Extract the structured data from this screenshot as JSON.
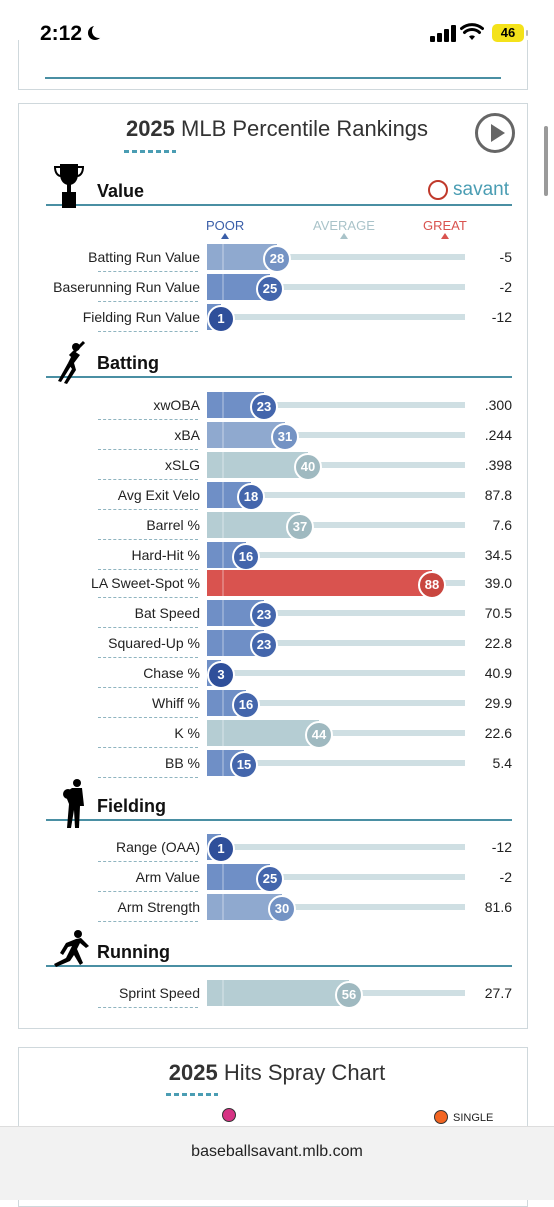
{
  "status_bar": {
    "time": "2:12",
    "battery": "46"
  },
  "percentile_card": {
    "title_year": "2025",
    "title_rest": "MLB Percentile Rankings",
    "logo_text": "savant",
    "scale": {
      "poor": "POOR",
      "average": "AVERAGE",
      "great": "GREAT"
    },
    "colors": {
      "poor": "#3a5ea8",
      "average": "#b5cdd3",
      "great": "#d9534f",
      "accent": "#4a8fa3"
    },
    "sections": [
      {
        "name": "Value",
        "icon": "trophy-icon",
        "rows": [
          {
            "label": "Batting Run Value",
            "percentile": 28,
            "value": "-5"
          },
          {
            "label": "Baserunning Run Value",
            "percentile": 25,
            "value": "-2"
          },
          {
            "label": "Fielding Run Value",
            "percentile": 1,
            "value": "-12"
          }
        ]
      },
      {
        "name": "Batting",
        "icon": "batter-icon",
        "rows": [
          {
            "label": "xwOBA",
            "percentile": 23,
            "value": ".300"
          },
          {
            "label": "xBA",
            "percentile": 31,
            "value": ".244"
          },
          {
            "label": "xSLG",
            "percentile": 40,
            "value": ".398"
          },
          {
            "label": "Avg Exit Velo",
            "percentile": 18,
            "value": "87.8"
          },
          {
            "label": "Barrel %",
            "percentile": 37,
            "value": "7.6"
          },
          {
            "label": "Hard-Hit %",
            "percentile": 16,
            "value": "34.5"
          },
          {
            "label": "LA Sweet-Spot %",
            "percentile": 88,
            "value": "39.0"
          },
          {
            "label": "Bat Speed",
            "percentile": 23,
            "value": "70.5"
          },
          {
            "label": "Squared-Up %",
            "percentile": 23,
            "value": "22.8"
          },
          {
            "label": "Chase %",
            "percentile": 3,
            "value": "40.9"
          },
          {
            "label": "Whiff %",
            "percentile": 16,
            "value": "29.9"
          },
          {
            "label": "K %",
            "percentile": 44,
            "value": "22.6"
          },
          {
            "label": "BB %",
            "percentile": 15,
            "value": "5.4"
          }
        ]
      },
      {
        "name": "Fielding",
        "icon": "fielder-icon",
        "rows": [
          {
            "label": "Range (OAA)",
            "percentile": 1,
            "value": "-12"
          },
          {
            "label": "Arm Value",
            "percentile": 25,
            "value": "-2"
          },
          {
            "label": "Arm Strength",
            "percentile": 30,
            "value": "81.6"
          }
        ]
      },
      {
        "name": "Running",
        "icon": "runner-icon",
        "rows": [
          {
            "label": "Sprint Speed",
            "percentile": 56,
            "value": "27.7"
          }
        ]
      }
    ]
  },
  "spray_card": {
    "title_year": "2025",
    "title_rest": "Hits Spray Chart",
    "legend_single": "SINGLE",
    "legend_colors": {
      "first": "#d63384",
      "single": "#f26522"
    }
  },
  "url_bar": {
    "url": "baseballsavant.mlb.com"
  }
}
